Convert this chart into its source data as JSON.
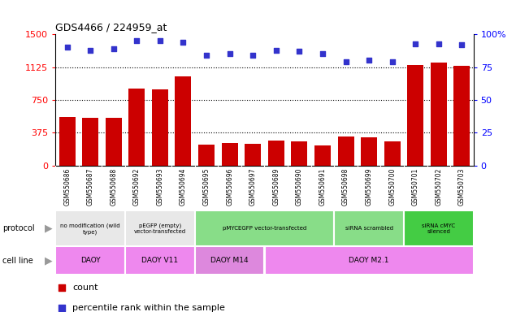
{
  "title": "GDS4466 / 224959_at",
  "samples": [
    "GSM550686",
    "GSM550687",
    "GSM550688",
    "GSM550692",
    "GSM550693",
    "GSM550694",
    "GSM550695",
    "GSM550696",
    "GSM550697",
    "GSM550689",
    "GSM550690",
    "GSM550691",
    "GSM550698",
    "GSM550699",
    "GSM550700",
    "GSM550701",
    "GSM550702",
    "GSM550703"
  ],
  "counts": [
    550,
    545,
    540,
    880,
    870,
    1020,
    240,
    255,
    245,
    285,
    270,
    230,
    330,
    325,
    275,
    1150,
    1175,
    1140
  ],
  "percentile_ranks": [
    90,
    88,
    89,
    95,
    95,
    94,
    84,
    85,
    84,
    88,
    87,
    85,
    79,
    80,
    79,
    93,
    93,
    92
  ],
  "ylim_left": [
    0,
    1500
  ],
  "ylim_right": [
    0,
    100
  ],
  "yticks_left": [
    0,
    375,
    750,
    1125,
    1500
  ],
  "yticks_right": [
    0,
    25,
    50,
    75,
    100
  ],
  "bar_color": "#cc0000",
  "dot_color": "#3333cc",
  "gridlines": [
    375,
    750,
    1125
  ],
  "protocol_groups": [
    {
      "label": "no modification (wild\ntype)",
      "start": 0,
      "end": 3,
      "color": "#e8e8e8"
    },
    {
      "label": "pEGFP (empty)\nvector-transfected",
      "start": 3,
      "end": 6,
      "color": "#e8e8e8"
    },
    {
      "label": "pMYCEGFP vector-transfected",
      "start": 6,
      "end": 12,
      "color": "#88dd88"
    },
    {
      "label": "siRNA scrambled",
      "start": 12,
      "end": 15,
      "color": "#88dd88"
    },
    {
      "label": "siRNA cMYC\nsilenced",
      "start": 15,
      "end": 18,
      "color": "#44cc44"
    }
  ],
  "cellline_groups": [
    {
      "label": "DAOY",
      "start": 0,
      "end": 3,
      "color": "#ee88ee"
    },
    {
      "label": "DAOY V11",
      "start": 3,
      "end": 6,
      "color": "#ee88ee"
    },
    {
      "label": "DAOY M14",
      "start": 6,
      "end": 9,
      "color": "#dd88dd"
    },
    {
      "label": "DAOY M2.1",
      "start": 9,
      "end": 18,
      "color": "#ee88ee"
    }
  ],
  "xtick_bg": "#cccccc",
  "plot_bg": "#ffffff"
}
